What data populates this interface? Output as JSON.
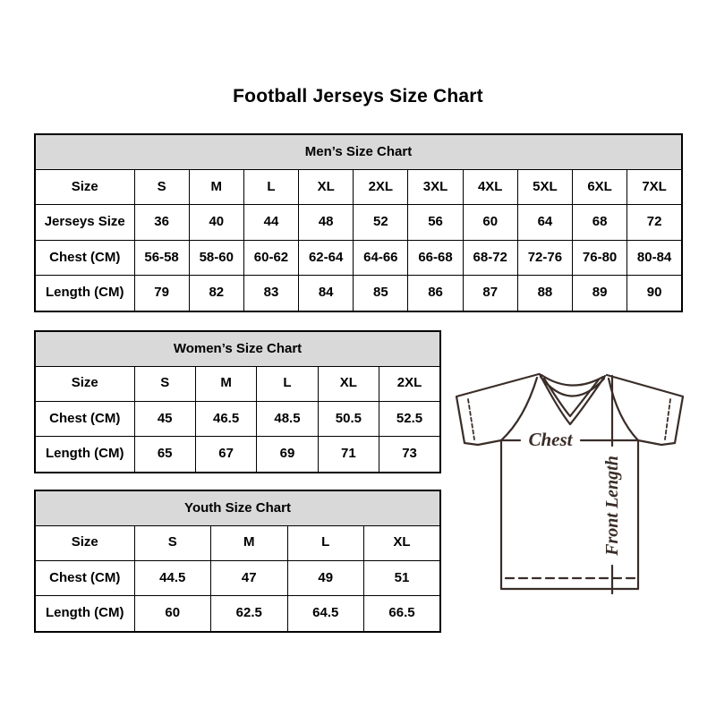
{
  "title": "Football Jerseys Size Chart",
  "tables": [
    {
      "title": "Men’s Size Chart",
      "rows": [
        [
          "Size",
          "S",
          "M",
          "L",
          "XL",
          "2XL",
          "3XL",
          "4XL",
          "5XL",
          "6XL",
          "7XL"
        ],
        [
          "Jerseys Size",
          "36",
          "40",
          "44",
          "48",
          "52",
          "56",
          "60",
          "64",
          "68",
          "72"
        ],
        [
          "Chest (CM)",
          "56-58",
          "58-60",
          "60-62",
          "62-64",
          "64-66",
          "66-68",
          "68-72",
          "72-76",
          "76-80",
          "80-84"
        ],
        [
          "Length (CM)",
          "79",
          "82",
          "83",
          "84",
          "85",
          "86",
          "87",
          "88",
          "89",
          "90"
        ]
      ]
    },
    {
      "title": "Women’s Size Chart",
      "rows": [
        [
          "Size",
          "S",
          "M",
          "L",
          "XL",
          "2XL"
        ],
        [
          "Chest (CM)",
          "45",
          "46.5",
          "48.5",
          "50.5",
          "52.5"
        ],
        [
          "Length (CM)",
          "65",
          "67",
          "69",
          "71",
          "73"
        ]
      ]
    },
    {
      "title": "Youth Size Chart",
      "rows": [
        [
          "Size",
          "S",
          "M",
          "L",
          "XL"
        ],
        [
          "Chest (CM)",
          "44.5",
          "47",
          "49",
          "51"
        ],
        [
          "Length (CM)",
          "60",
          "62.5",
          "64.5",
          "66.5"
        ]
      ]
    }
  ],
  "diagram": {
    "chest_label": "Chest",
    "front_length_label": "Front Length"
  },
  "colors": {
    "table_header_bg": "#d9d9d9",
    "table_border": "#000000",
    "text": "#000000",
    "jersey_line": "#3a2d28",
    "background": "#ffffff"
  }
}
